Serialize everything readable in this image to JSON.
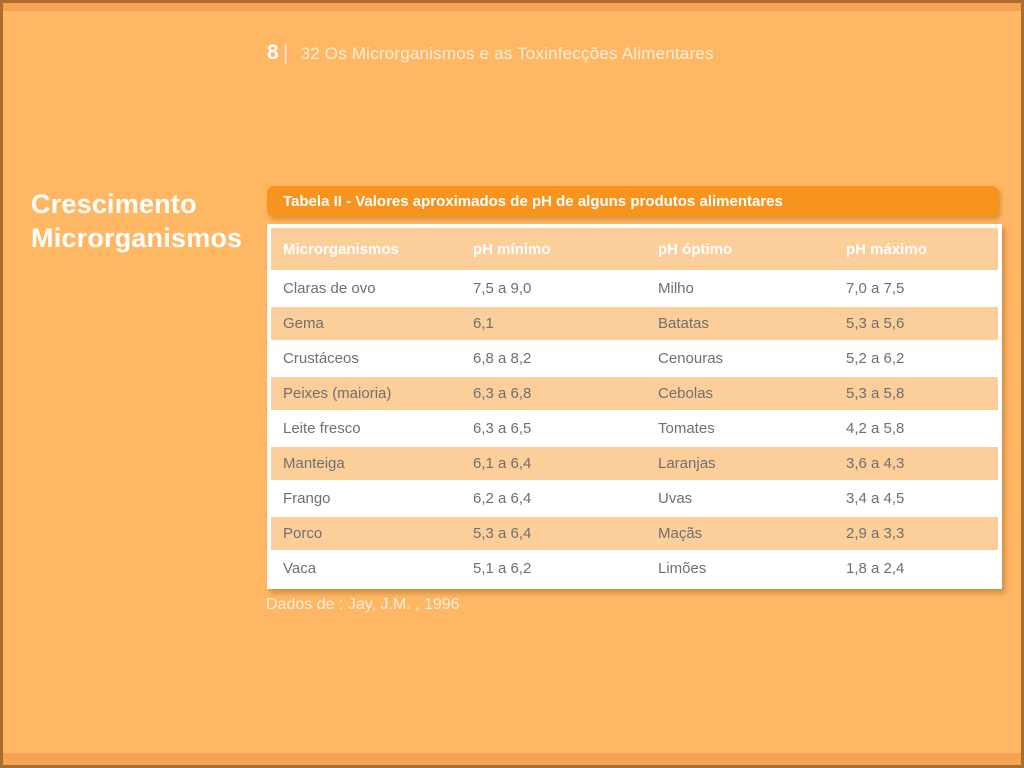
{
  "slide": {
    "page_number": "8",
    "header_title": "32 Os Microrganismos e as Toxinfecções Alimentares",
    "side_title_line1": "Crescimento",
    "side_title_line2": "Microrganismos",
    "source_note": "Dados de : Jay, J.M. , 1996"
  },
  "table": {
    "caption": "Tabela II - Valores aproximados de pH de alguns produtos alimentares",
    "columns": [
      "Microrganismos",
      "pH mínimo",
      "pH óptimo",
      "pH máximo"
    ],
    "rows": [
      [
        "Claras de ovo",
        "7,5 a 9,0",
        "Milho",
        "7,0 a 7,5"
      ],
      [
        "Gema",
        "6,1",
        "Batatas",
        "5,3 a 5,6"
      ],
      [
        "Crustáceos",
        "6,8 a 8,2",
        "Cenouras",
        "5,2 a 6,2"
      ],
      [
        "Peixes (maioria)",
        "6,3 a 6,8",
        "Cebolas",
        "5,3 a 5,8"
      ],
      [
        "Leite fresco",
        "6,3 a 6,5",
        "Tomates",
        "4,2 a 5,8"
      ],
      [
        "Manteiga",
        "6,1 a 6,4",
        "Laranjas",
        "3,6 a 4,3"
      ],
      [
        "Frango",
        "6,2 a 6,4",
        "Uvas",
        "3,4 a 4,5"
      ],
      [
        "Porco",
        "5,3 a 6,4",
        "Maçãs",
        "2,9 a 3,3"
      ],
      [
        "Vaca",
        "5,1 a 6,2",
        "Limões",
        "1,8 a 2,4"
      ]
    ]
  },
  "colors": {
    "background": "#FFB763",
    "edge_band": "#F5A254",
    "border": "#AA6C31",
    "caption_bar": "#F7941D",
    "row_highlight": "#FBCE9A",
    "row_white": "#FFFFFF",
    "cell_text": "#6F6F6F",
    "light_text": "#FBEEDC"
  }
}
